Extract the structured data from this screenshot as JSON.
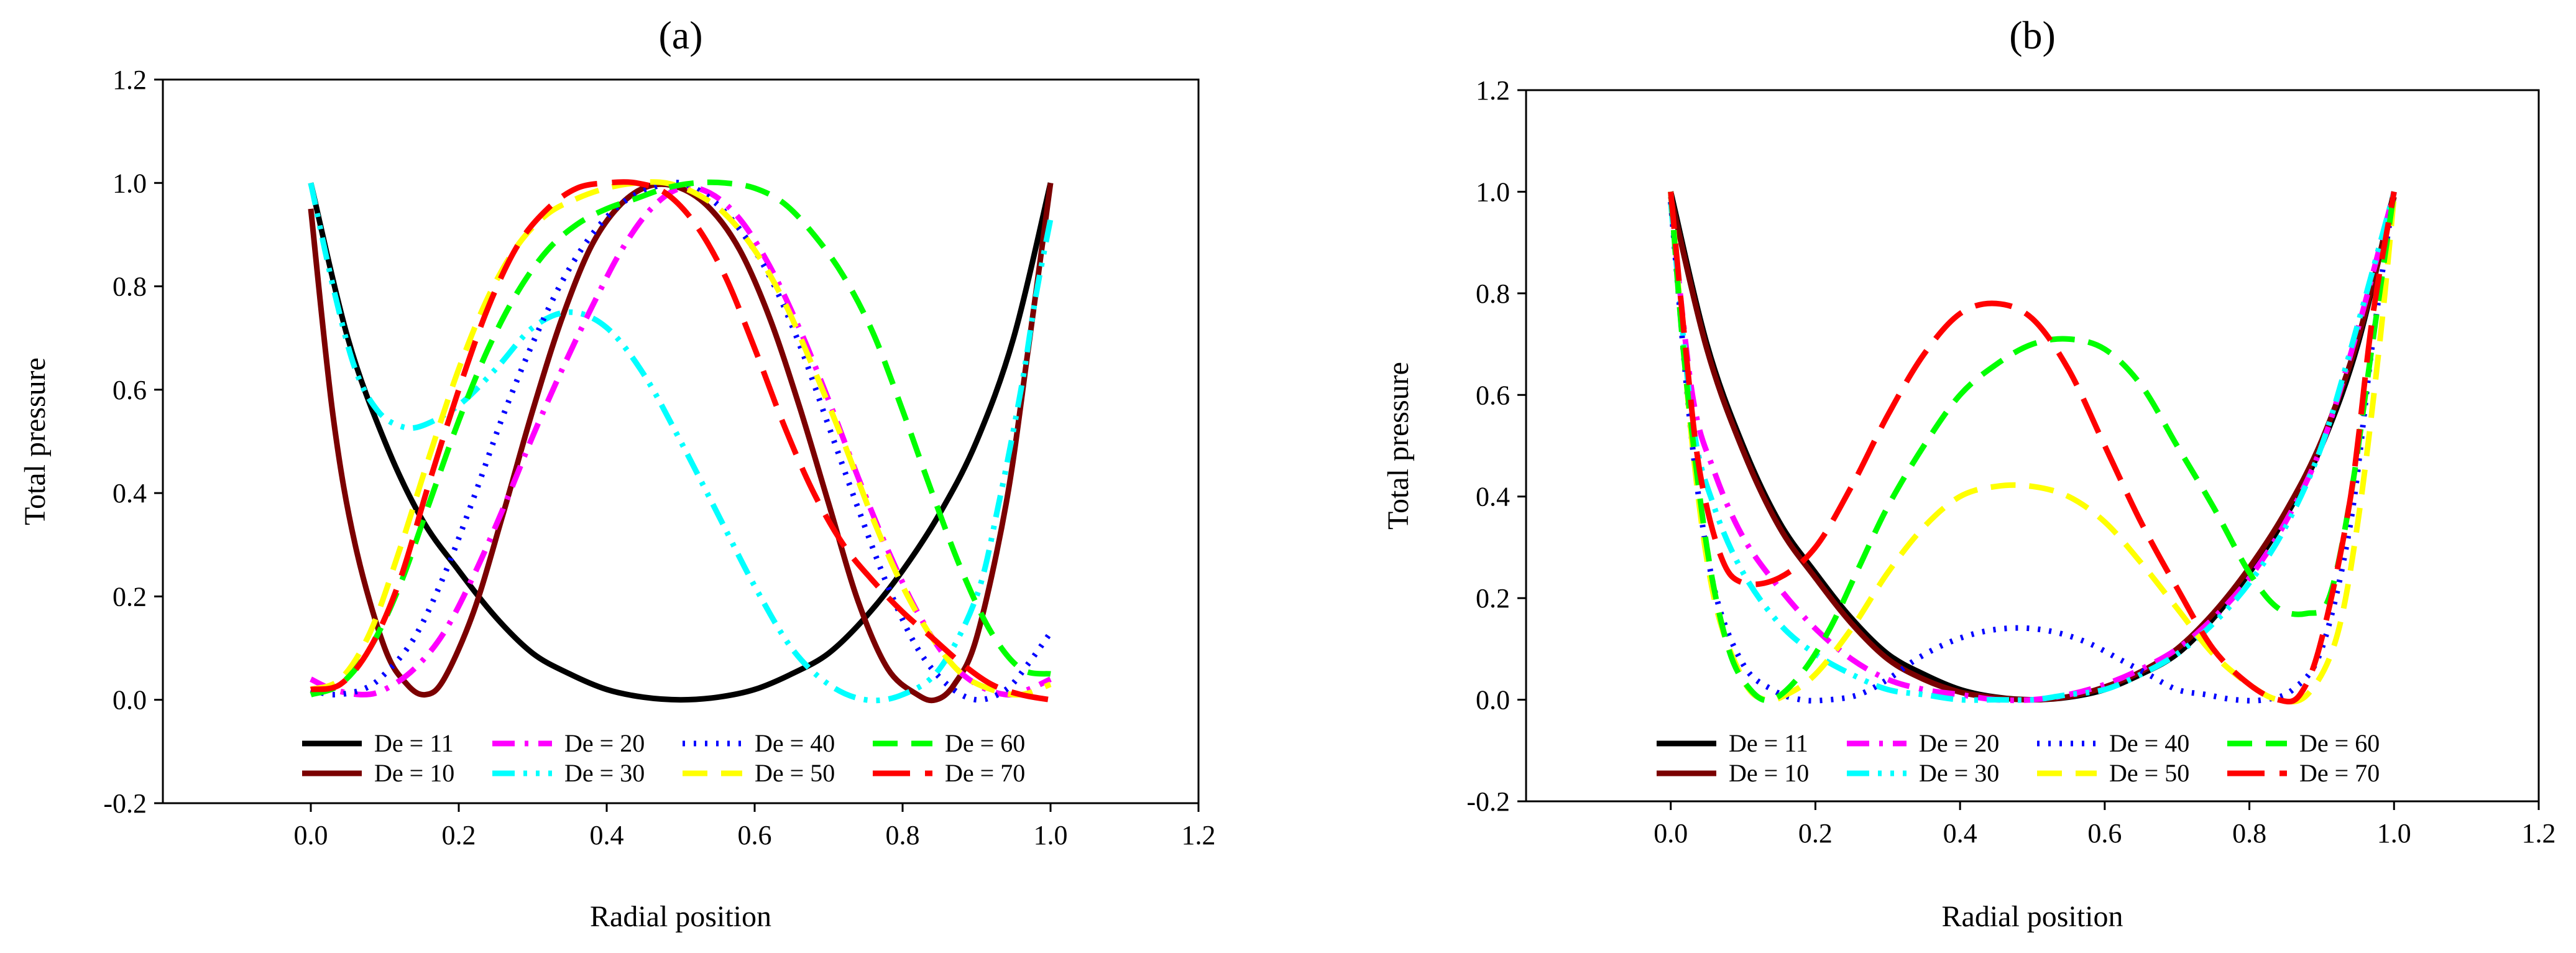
{
  "chart_data": [
    {
      "type": "line",
      "panel_label": "(a)",
      "xlabel": "Radial position",
      "ylabel": "Total pressure",
      "xlim": [
        -0.2,
        1.2
      ],
      "ylim": [
        -0.2,
        1.2
      ],
      "xticks": [
        "0.0",
        "0.2",
        "0.4",
        "0.6",
        "0.8",
        "1.0",
        "1.2"
      ],
      "yticks": [
        "-0.2",
        "0.0",
        "0.2",
        "0.4",
        "0.6",
        "0.8",
        "1.0",
        "1.2"
      ],
      "grid": false,
      "legend_position": "bottom-center",
      "series": [
        {
          "name": "De = 11",
          "color": "#000000",
          "dash": "solid",
          "x": [
            0.0,
            0.05,
            0.1,
            0.15,
            0.2,
            0.25,
            0.3,
            0.35,
            0.4,
            0.45,
            0.5,
            0.55,
            0.6,
            0.65,
            0.7,
            0.75,
            0.8,
            0.85,
            0.9,
            0.95,
            1.0
          ],
          "y": [
            1.0,
            0.7,
            0.5,
            0.35,
            0.25,
            0.16,
            0.09,
            0.05,
            0.02,
            0.005,
            0.0,
            0.005,
            0.02,
            0.05,
            0.09,
            0.16,
            0.25,
            0.36,
            0.5,
            0.7,
            1.0
          ]
        },
        {
          "name": "De = 10",
          "color": "#7b0000",
          "dash": "solid",
          "x": [
            0.0,
            0.03,
            0.06,
            0.1,
            0.13,
            0.155,
            0.18,
            0.22,
            0.26,
            0.3,
            0.34,
            0.38,
            0.42,
            0.46,
            0.5,
            0.54,
            0.58,
            0.62,
            0.66,
            0.7,
            0.74,
            0.78,
            0.82,
            0.845,
            0.87,
            0.9,
            0.94,
            0.97,
            1.0
          ],
          "y": [
            0.95,
            0.55,
            0.3,
            0.1,
            0.03,
            0.01,
            0.04,
            0.17,
            0.36,
            0.56,
            0.74,
            0.88,
            0.96,
            0.995,
            0.99,
            0.95,
            0.87,
            0.74,
            0.57,
            0.38,
            0.19,
            0.06,
            0.01,
            0.0,
            0.03,
            0.12,
            0.38,
            0.68,
            1.0
          ]
        },
        {
          "name": "De = 20",
          "color": "#ff00ff",
          "dash": "dashdot",
          "x": [
            0.0,
            0.03,
            0.07,
            0.1,
            0.14,
            0.18,
            0.22,
            0.26,
            0.3,
            0.34,
            0.38,
            0.42,
            0.46,
            0.5,
            0.54,
            0.58,
            0.62,
            0.66,
            0.7,
            0.74,
            0.78,
            0.82,
            0.86,
            0.9,
            0.94,
            0.97,
            1.0
          ],
          "y": [
            0.04,
            0.02,
            0.01,
            0.02,
            0.06,
            0.13,
            0.24,
            0.37,
            0.51,
            0.64,
            0.76,
            0.87,
            0.95,
            0.99,
            0.98,
            0.93,
            0.84,
            0.72,
            0.58,
            0.43,
            0.29,
            0.17,
            0.08,
            0.03,
            0.01,
            0.02,
            0.04
          ]
        },
        {
          "name": "De = 30",
          "color": "#00ffff",
          "dash": "dashdotdot",
          "x": [
            0.0,
            0.03,
            0.06,
            0.09,
            0.12,
            0.15,
            0.2,
            0.25,
            0.3,
            0.35,
            0.4,
            0.45,
            0.5,
            0.55,
            0.6,
            0.65,
            0.7,
            0.75,
            0.8,
            0.85,
            0.9,
            0.93,
            0.96,
            0.98,
            1.0
          ],
          "y": [
            1.0,
            0.8,
            0.64,
            0.56,
            0.53,
            0.53,
            0.57,
            0.64,
            0.72,
            0.75,
            0.72,
            0.63,
            0.5,
            0.36,
            0.22,
            0.1,
            0.03,
            0.0,
            0.01,
            0.06,
            0.2,
            0.38,
            0.6,
            0.78,
            0.93
          ]
        },
        {
          "name": "De = 40",
          "color": "#0000ff",
          "dash": "dotted",
          "x": [
            0.0,
            0.03,
            0.07,
            0.1,
            0.14,
            0.18,
            0.22,
            0.26,
            0.3,
            0.34,
            0.38,
            0.42,
            0.46,
            0.5,
            0.54,
            0.58,
            0.62,
            0.66,
            0.7,
            0.74,
            0.78,
            0.82,
            0.86,
            0.9,
            0.94,
            0.97,
            1.0
          ],
          "y": [
            0.02,
            0.01,
            0.02,
            0.05,
            0.12,
            0.24,
            0.39,
            0.55,
            0.69,
            0.81,
            0.9,
            0.96,
            0.99,
            1.0,
            0.97,
            0.91,
            0.82,
            0.69,
            0.53,
            0.37,
            0.22,
            0.1,
            0.03,
            0.0,
            0.02,
            0.07,
            0.13
          ]
        },
        {
          "name": "De = 50",
          "color": "#ffff00",
          "dash": "dashed",
          "x": [
            0.0,
            0.04,
            0.08,
            0.12,
            0.16,
            0.2,
            0.24,
            0.28,
            0.32,
            0.36,
            0.4,
            0.44,
            0.48,
            0.52,
            0.56,
            0.6,
            0.64,
            0.68,
            0.72,
            0.76,
            0.8,
            0.84,
            0.88,
            0.92,
            0.96,
            1.0
          ],
          "y": [
            0.02,
            0.04,
            0.13,
            0.29,
            0.47,
            0.64,
            0.78,
            0.88,
            0.94,
            0.97,
            0.99,
            1.0,
            1.0,
            0.98,
            0.94,
            0.87,
            0.77,
            0.64,
            0.5,
            0.35,
            0.22,
            0.12,
            0.05,
            0.02,
            0.01,
            0.03
          ]
        },
        {
          "name": "De = 60",
          "color": "#00ff00",
          "dash": "dashed",
          "x": [
            0.0,
            0.04,
            0.08,
            0.12,
            0.16,
            0.2,
            0.24,
            0.28,
            0.32,
            0.36,
            0.4,
            0.44,
            0.48,
            0.52,
            0.56,
            0.6,
            0.64,
            0.68,
            0.72,
            0.76,
            0.8,
            0.84,
            0.88,
            0.92,
            0.96,
            1.0
          ],
          "y": [
            0.01,
            0.03,
            0.1,
            0.22,
            0.38,
            0.54,
            0.68,
            0.79,
            0.87,
            0.92,
            0.95,
            0.97,
            0.99,
            1.0,
            1.0,
            0.99,
            0.96,
            0.9,
            0.82,
            0.71,
            0.56,
            0.4,
            0.25,
            0.13,
            0.06,
            0.05
          ]
        },
        {
          "name": "De = 70",
          "color": "#ff0000",
          "dash": "longdash",
          "x": [
            0.0,
            0.04,
            0.08,
            0.12,
            0.16,
            0.2,
            0.24,
            0.28,
            0.32,
            0.36,
            0.4,
            0.44,
            0.48,
            0.52,
            0.56,
            0.6,
            0.64,
            0.68,
            0.72,
            0.76,
            0.8,
            0.84,
            0.88,
            0.92,
            0.96,
            1.0
          ],
          "y": [
            0.02,
            0.03,
            0.1,
            0.23,
            0.42,
            0.6,
            0.76,
            0.88,
            0.95,
            0.99,
            1.0,
            1.0,
            0.98,
            0.92,
            0.82,
            0.68,
            0.53,
            0.4,
            0.3,
            0.23,
            0.17,
            0.12,
            0.07,
            0.03,
            0.01,
            0.0
          ]
        }
      ]
    },
    {
      "type": "line",
      "panel_label": "(b)",
      "xlabel": "Radial position",
      "ylabel": "Total pressure",
      "xlim": [
        -0.2,
        1.2
      ],
      "ylim": [
        -0.2,
        1.2
      ],
      "xticks": [
        "0.0",
        "0.2",
        "0.4",
        "0.6",
        "0.8",
        "1.0",
        "1.2"
      ],
      "yticks": [
        "-0.2",
        "0.0",
        "0.2",
        "0.4",
        "0.6",
        "0.8",
        "1.0",
        "1.2"
      ],
      "grid": false,
      "legend_position": "bottom-center",
      "series": [
        {
          "name": "De = 11",
          "color": "#000000",
          "dash": "solid",
          "x": [
            0.0,
            0.05,
            0.1,
            0.15,
            0.2,
            0.25,
            0.3,
            0.35,
            0.4,
            0.45,
            0.5,
            0.55,
            0.6,
            0.65,
            0.7,
            0.75,
            0.8,
            0.85,
            0.9,
            0.95,
            1.0
          ],
          "y": [
            1.0,
            0.7,
            0.5,
            0.35,
            0.25,
            0.16,
            0.09,
            0.05,
            0.02,
            0.005,
            0.0,
            0.005,
            0.02,
            0.05,
            0.09,
            0.16,
            0.25,
            0.36,
            0.5,
            0.7,
            1.0
          ]
        },
        {
          "name": "De = 10",
          "color": "#7b0000",
          "dash": "solid",
          "x": [
            0.0,
            0.05,
            0.1,
            0.15,
            0.2,
            0.25,
            0.3,
            0.35,
            0.4,
            0.45,
            0.5,
            0.55,
            0.6,
            0.65,
            0.7,
            0.75,
            0.8,
            0.85,
            0.9,
            0.95,
            1.0
          ],
          "y": [
            0.99,
            0.69,
            0.49,
            0.34,
            0.24,
            0.15,
            0.08,
            0.04,
            0.015,
            0.004,
            0.0,
            0.006,
            0.025,
            0.055,
            0.1,
            0.17,
            0.26,
            0.37,
            0.51,
            0.71,
            0.99
          ]
        },
        {
          "name": "De = 20",
          "color": "#ff00ff",
          "dash": "dashdot",
          "x": [
            0.0,
            0.03,
            0.06,
            0.1,
            0.15,
            0.2,
            0.25,
            0.3,
            0.35,
            0.4,
            0.45,
            0.5,
            0.55,
            0.6,
            0.65,
            0.7,
            0.75,
            0.8,
            0.85,
            0.9,
            0.95,
            1.0
          ],
          "y": [
            0.98,
            0.6,
            0.45,
            0.32,
            0.22,
            0.14,
            0.08,
            0.04,
            0.02,
            0.01,
            0.0,
            0.0,
            0.01,
            0.03,
            0.06,
            0.1,
            0.16,
            0.24,
            0.35,
            0.5,
            0.73,
            1.0
          ]
        },
        {
          "name": "De = 30",
          "color": "#00ffff",
          "dash": "dashdotdot",
          "x": [
            0.0,
            0.03,
            0.06,
            0.1,
            0.15,
            0.2,
            0.25,
            0.3,
            0.35,
            0.4,
            0.45,
            0.5,
            0.55,
            0.6,
            0.65,
            0.7,
            0.75,
            0.8,
            0.85,
            0.9,
            0.95,
            1.0
          ],
          "y": [
            0.98,
            0.55,
            0.38,
            0.25,
            0.15,
            0.09,
            0.05,
            0.02,
            0.01,
            0.0,
            0.0,
            0.0,
            0.01,
            0.02,
            0.05,
            0.09,
            0.15,
            0.23,
            0.34,
            0.5,
            0.74,
            1.0
          ]
        },
        {
          "name": "De = 40",
          "color": "#0000ff",
          "dash": "dotted",
          "x": [
            0.0,
            0.03,
            0.06,
            0.1,
            0.14,
            0.18,
            0.22,
            0.26,
            0.3,
            0.34,
            0.38,
            0.42,
            0.46,
            0.5,
            0.54,
            0.58,
            0.62,
            0.66,
            0.7,
            0.74,
            0.78,
            0.82,
            0.86,
            0.9,
            0.94,
            0.97,
            1.0
          ],
          "y": [
            0.98,
            0.5,
            0.22,
            0.07,
            0.02,
            0.0,
            0.0,
            0.01,
            0.04,
            0.08,
            0.11,
            0.13,
            0.14,
            0.14,
            0.13,
            0.11,
            0.08,
            0.05,
            0.02,
            0.01,
            0.0,
            0.0,
            0.02,
            0.1,
            0.35,
            0.7,
            1.0
          ]
        },
        {
          "name": "De = 50",
          "color": "#ffff00",
          "dash": "dashed",
          "x": [
            0.0,
            0.03,
            0.06,
            0.1,
            0.13,
            0.16,
            0.2,
            0.25,
            0.3,
            0.35,
            0.4,
            0.45,
            0.5,
            0.55,
            0.6,
            0.65,
            0.7,
            0.75,
            0.8,
            0.84,
            0.88,
            0.92,
            0.95,
            0.98,
            1.0
          ],
          "y": [
            1.0,
            0.5,
            0.2,
            0.04,
            0.0,
            0.01,
            0.05,
            0.14,
            0.25,
            0.34,
            0.4,
            0.42,
            0.42,
            0.4,
            0.35,
            0.27,
            0.18,
            0.09,
            0.03,
            0.0,
            0.01,
            0.12,
            0.35,
            0.7,
            0.99
          ]
        },
        {
          "name": "De = 60",
          "color": "#00ff00",
          "dash": "dashed",
          "x": [
            0.0,
            0.02,
            0.05,
            0.08,
            0.11,
            0.14,
            0.18,
            0.22,
            0.26,
            0.3,
            0.35,
            0.4,
            0.45,
            0.5,
            0.55,
            0.6,
            0.65,
            0.7,
            0.75,
            0.8,
            0.84,
            0.88,
            0.91,
            0.94,
            0.97,
            1.0
          ],
          "y": [
            1.0,
            0.65,
            0.3,
            0.1,
            0.02,
            0.0,
            0.05,
            0.14,
            0.26,
            0.38,
            0.5,
            0.6,
            0.66,
            0.7,
            0.71,
            0.69,
            0.62,
            0.5,
            0.38,
            0.25,
            0.18,
            0.17,
            0.2,
            0.4,
            0.7,
            1.0
          ]
        },
        {
          "name": "De = 70",
          "color": "#ff0000",
          "dash": "longdash",
          "x": [
            0.0,
            0.02,
            0.04,
            0.07,
            0.1,
            0.15,
            0.2,
            0.25,
            0.3,
            0.35,
            0.4,
            0.45,
            0.5,
            0.55,
            0.6,
            0.65,
            0.7,
            0.75,
            0.8,
            0.84,
            0.87,
            0.9,
            0.94,
            0.97,
            1.0
          ],
          "y": [
            1.0,
            0.7,
            0.45,
            0.28,
            0.23,
            0.24,
            0.3,
            0.42,
            0.56,
            0.68,
            0.76,
            0.78,
            0.75,
            0.65,
            0.5,
            0.35,
            0.22,
            0.1,
            0.03,
            0.0,
            0.01,
            0.12,
            0.4,
            0.75,
            1.0
          ]
        }
      ]
    }
  ]
}
